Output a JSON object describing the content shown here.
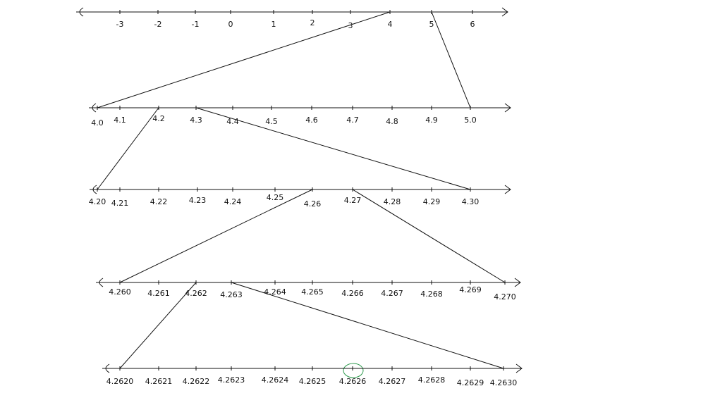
{
  "lines": [
    {
      "ticks": [
        "-3",
        "-2",
        "-1",
        "0",
        "1",
        "2",
        "3",
        "4",
        "5",
        "6"
      ]
    },
    {
      "ticks": [
        "4.0",
        "4.1",
        "4.2",
        "4.3",
        "4.4",
        "4.5",
        "4.6",
        "4.7",
        "4.8",
        "4.9",
        "5.0"
      ]
    },
    {
      "ticks": [
        "4.20",
        "4.21",
        "4.22",
        "4.23",
        "4.24",
        "4.25",
        "4.26",
        "4.27",
        "4.28",
        "4.29",
        "4.30"
      ]
    },
    {
      "ticks": [
        "4.260",
        "4.261",
        "4.262",
        "4.263",
        "4.264",
        "4.265",
        "4.266",
        "4.267",
        "4.268",
        "4.269",
        "4.270"
      ]
    },
    {
      "ticks": [
        "4.2620",
        "4.2621",
        "4.2622",
        "4.2623",
        "4.2624",
        "4.2625",
        "4.2626",
        "4.2627",
        "4.2628",
        "4.2629",
        "4.2630"
      ]
    }
  ]
}
